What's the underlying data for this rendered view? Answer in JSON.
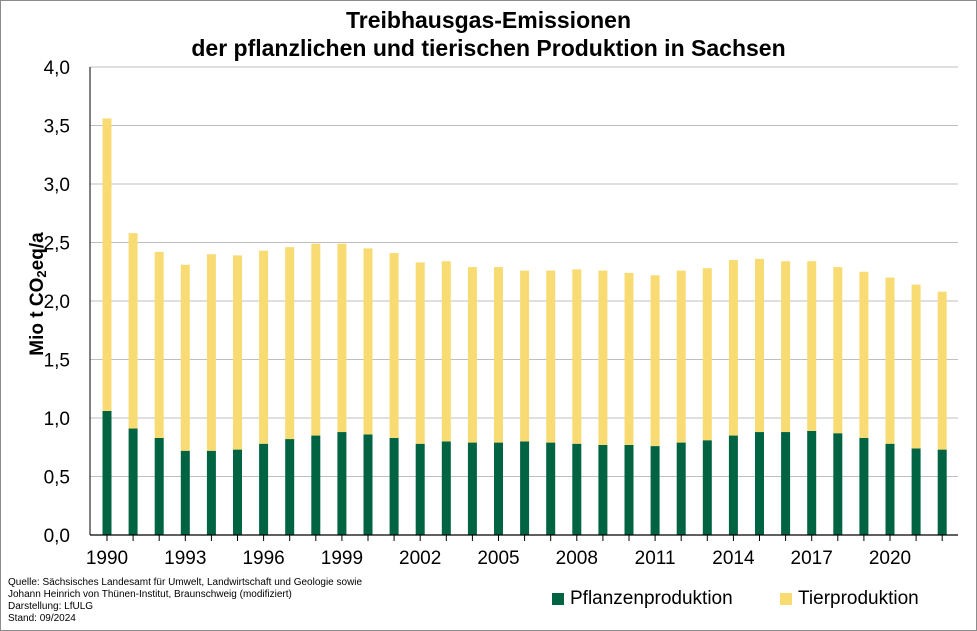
{
  "chart_data": {
    "type": "bar",
    "stacked": true,
    "title_line1": "Treibhausgas-Emissionen",
    "title_line2": "der pflanzlichen und tierischen Produktion in Sachsen",
    "ylabel_main": "Mio  t CO",
    "ylabel_sub": "2",
    "ylabel_tail": "eq/a",
    "ylim": [
      0,
      4.0
    ],
    "yticks": [
      "0,0",
      "0,5",
      "1,0",
      "1,5",
      "2,0",
      "2,5",
      "3,0",
      "3,5",
      "4,0"
    ],
    "grid": true,
    "legend_position": "bottom-right",
    "categories": [
      1990,
      1991,
      1992,
      1993,
      1994,
      1995,
      1996,
      1997,
      1998,
      1999,
      2000,
      2001,
      2002,
      2003,
      2004,
      2005,
      2006,
      2007,
      2008,
      2009,
      2010,
      2011,
      2012,
      2013,
      2014,
      2015,
      2016,
      2017,
      2018,
      2019,
      2020,
      2021,
      2022
    ],
    "xtick_labels": [
      "1990",
      "1993",
      "1996",
      "1999",
      "2002",
      "2005",
      "2008",
      "2011",
      "2014",
      "2017",
      "2020"
    ],
    "series": [
      {
        "name": "Pflanzenproduktion",
        "color": "#006443",
        "values": [
          1.06,
          0.91,
          0.83,
          0.72,
          0.72,
          0.73,
          0.78,
          0.82,
          0.85,
          0.88,
          0.86,
          0.83,
          0.78,
          0.8,
          0.79,
          0.79,
          0.8,
          0.79,
          0.78,
          0.77,
          0.77,
          0.76,
          0.79,
          0.81,
          0.85,
          0.88,
          0.88,
          0.89,
          0.87,
          0.83,
          0.78,
          0.74,
          0.73
        ]
      },
      {
        "name": "Tierproduktion",
        "color": "#f8dc73",
        "values": [
          2.5,
          1.67,
          1.59,
          1.59,
          1.68,
          1.66,
          1.65,
          1.64,
          1.64,
          1.61,
          1.59,
          1.58,
          1.55,
          1.54,
          1.5,
          1.5,
          1.46,
          1.47,
          1.49,
          1.49,
          1.47,
          1.46,
          1.47,
          1.47,
          1.5,
          1.48,
          1.46,
          1.45,
          1.42,
          1.42,
          1.42,
          1.4,
          1.35
        ]
      }
    ]
  },
  "source": {
    "line1": "Quelle:  Sächsisches Landesamt für Umwelt, Landwirtschaft und Geologie sowie",
    "line2": "Johann Heinrich von Thünen-Institut, Braunschweig (modifiziert)",
    "line3": "Darstellung: LfULG",
    "line4": "Stand: 09/2024"
  }
}
